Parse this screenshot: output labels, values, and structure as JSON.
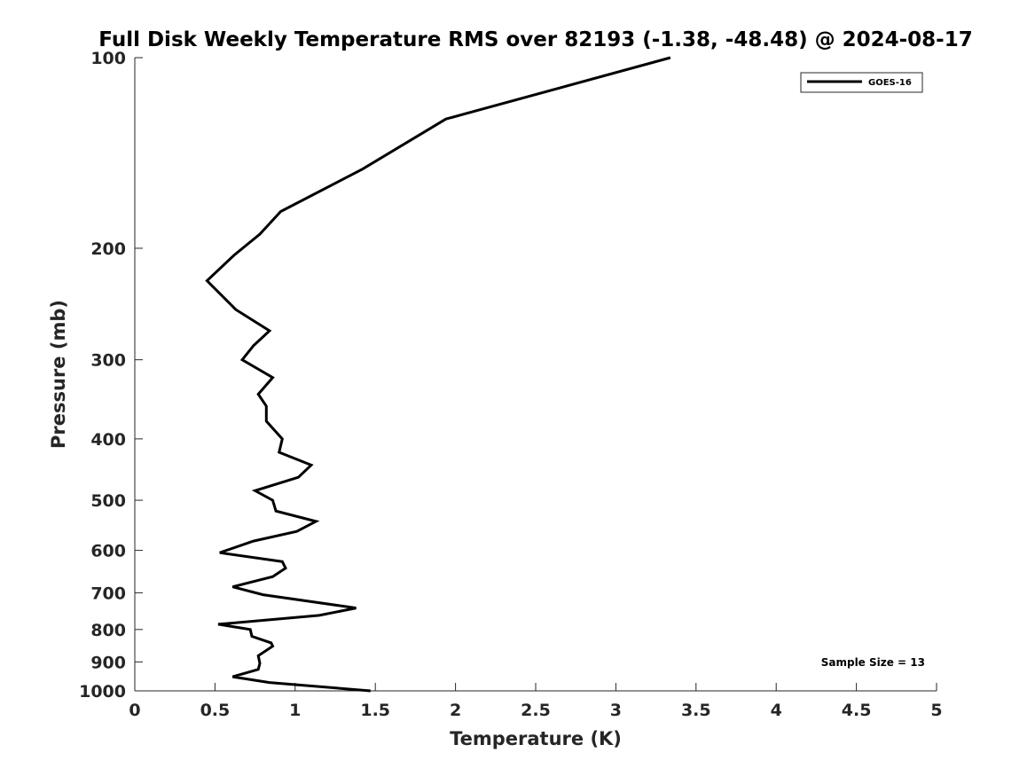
{
  "chart_data": {
    "type": "line",
    "title": "Full Disk Weekly Temperature RMS over 82193 (-1.38, -48.48) @ 2024-08-17",
    "xlabel": "Temperature (K)",
    "ylabel": "Pressure (mb)",
    "xlim": [
      0,
      5
    ],
    "ylim": [
      100,
      1000
    ],
    "y_scale": "log",
    "y_reversed": true,
    "grid": false,
    "legend_position": "top-right",
    "x_ticks": [
      0,
      0.5,
      1,
      1.5,
      2,
      2.5,
      3,
      3.5,
      4,
      4.5,
      5
    ],
    "x_tick_labels": [
      "0",
      "0.5",
      "1",
      "1.5",
      "2",
      "2.5",
      "3",
      "3.5",
      "4",
      "4.5",
      "5"
    ],
    "y_ticks": [
      100,
      200,
      300,
      400,
      500,
      600,
      700,
      800,
      900,
      1000
    ],
    "y_tick_labels": [
      "100",
      "200",
      "300",
      "400",
      "500",
      "600",
      "700",
      "800",
      "900",
      "1000"
    ],
    "series": [
      {
        "name": "GOES-16",
        "color": "#000000",
        "points": [
          [
            3.34,
            100
          ],
          [
            1.94,
            125
          ],
          [
            1.42,
            150
          ],
          [
            0.91,
            175
          ],
          [
            0.78,
            190
          ],
          [
            0.62,
            205
          ],
          [
            0.45,
            225
          ],
          [
            0.63,
            250
          ],
          [
            0.84,
            270
          ],
          [
            0.74,
            285
          ],
          [
            0.67,
            300
          ],
          [
            0.86,
            320
          ],
          [
            0.77,
            340
          ],
          [
            0.82,
            355
          ],
          [
            0.82,
            375
          ],
          [
            0.92,
            400
          ],
          [
            0.9,
            420
          ],
          [
            1.1,
            440
          ],
          [
            1.02,
            460
          ],
          [
            0.75,
            483
          ],
          [
            0.86,
            500
          ],
          [
            0.88,
            520
          ],
          [
            1.13,
            540
          ],
          [
            1.01,
            560
          ],
          [
            0.74,
            580
          ],
          [
            0.53,
            605
          ],
          [
            0.92,
            625
          ],
          [
            0.94,
            640
          ],
          [
            0.86,
            660
          ],
          [
            0.61,
            685
          ],
          [
            0.8,
            705
          ],
          [
            1.38,
            740
          ],
          [
            1.15,
            760
          ],
          [
            0.52,
            785
          ],
          [
            0.72,
            800
          ],
          [
            0.73,
            820
          ],
          [
            0.85,
            840
          ],
          [
            0.86,
            850
          ],
          [
            0.77,
            880
          ],
          [
            0.78,
            905
          ],
          [
            0.77,
            925
          ],
          [
            0.61,
            950
          ],
          [
            0.84,
            970
          ],
          [
            1.47,
            1000
          ]
        ]
      }
    ],
    "annotation": "Sample Size = 13"
  }
}
